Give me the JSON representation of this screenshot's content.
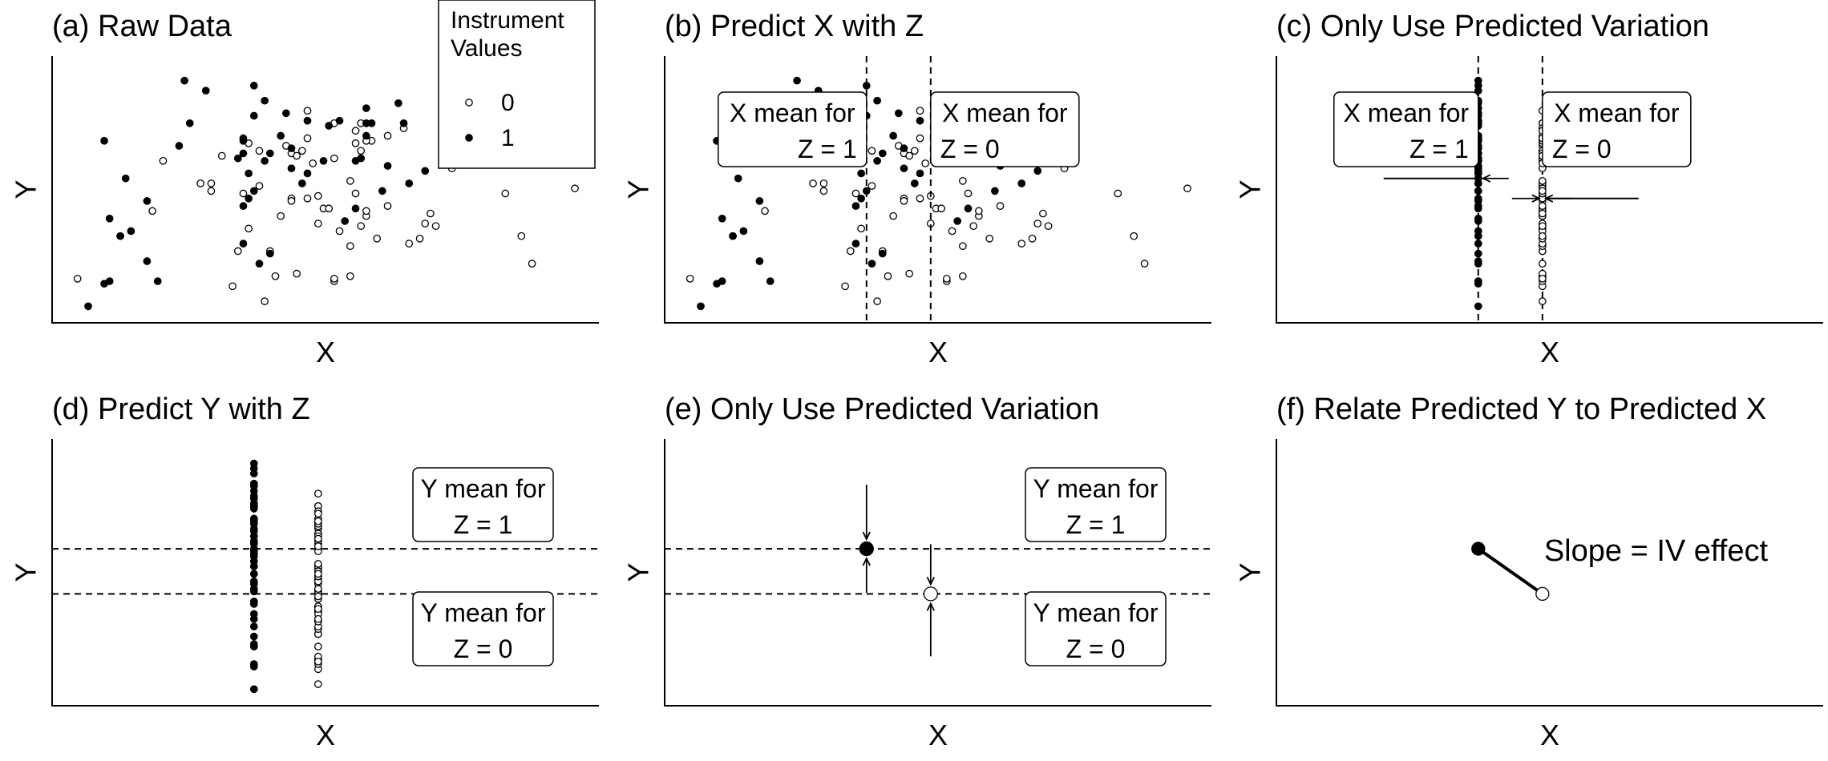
{
  "chart_data": [
    {
      "panel": "a",
      "type": "scatter",
      "title": "(a) Raw Data",
      "xlabel": "X",
      "ylabel": "Y",
      "xlim": [
        0,
        100
      ],
      "ylim": [
        0,
        100
      ],
      "legend": {
        "title_lines": [
          "Instrument",
          "Values"
        ],
        "placement": "top-right",
        "entries": [
          {
            "label": "0",
            "marker": "open"
          },
          {
            "label": "1",
            "marker": "filled"
          }
        ]
      },
      "series": [
        {
          "name": "0",
          "marker": "open",
          "points": [
            [
              4,
              16
            ],
            [
              20,
              63
            ],
            [
              29,
              54
            ],
            [
              41,
              17
            ],
            [
              44,
              48
            ],
            [
              49,
              49
            ],
            [
              50,
              44
            ],
            [
              34,
              27
            ],
            [
              33,
              13
            ],
            [
              35,
              50
            ],
            [
              38,
              53
            ],
            [
              40,
              27
            ],
            [
              42,
              41
            ],
            [
              36,
              36
            ],
            [
              27,
              54
            ],
            [
              18,
              43
            ],
            [
              12,
              33
            ],
            [
              38,
              67
            ],
            [
              43,
              69
            ],
            [
              46,
              67
            ],
            [
              47,
              83
            ],
            [
              44,
              47
            ],
            [
              52,
              78
            ],
            [
              56,
              70
            ],
            [
              57,
              67
            ],
            [
              55,
              55
            ],
            [
              47,
              48
            ],
            [
              51,
              44
            ],
            [
              49,
              38
            ],
            [
              56,
              50
            ],
            [
              58,
              41
            ],
            [
              60,
              32
            ],
            [
              58,
              43
            ],
            [
              57,
              37
            ],
            [
              53,
              35
            ],
            [
              55,
              29
            ],
            [
              55,
              17
            ],
            [
              52,
              15
            ],
            [
              45,
              18
            ],
            [
              52,
              16
            ],
            [
              66,
              30
            ],
            [
              69,
              38
            ],
            [
              62,
              45
            ],
            [
              70,
              42
            ],
            [
              71,
              37
            ],
            [
              57,
              78
            ],
            [
              62,
              73
            ],
            [
              65,
              76
            ],
            [
              59,
              71
            ],
            [
              68,
              32
            ],
            [
              74,
              60
            ],
            [
              84,
              50
            ],
            [
              87,
              33
            ],
            [
              89,
              22
            ],
            [
              97,
              52
            ],
            [
              52,
              64
            ],
            [
              48,
              62
            ],
            [
              44,
              66
            ],
            [
              36,
              70
            ],
            [
              31,
              65
            ],
            [
              56,
              75
            ],
            [
              58,
              71
            ],
            [
              47,
              72
            ],
            [
              39,
              7
            ],
            [
              45,
              65
            ],
            [
              29,
              51
            ]
          ]
        },
        {
          "name": "1",
          "marker": "filled",
          "points": [
            [
              6,
              5
            ],
            [
              9,
              14
            ],
            [
              9,
              71
            ],
            [
              10,
              40
            ],
            [
              12,
              33
            ],
            [
              13,
              56
            ],
            [
              14,
              35
            ],
            [
              17,
              23
            ],
            [
              17,
              47
            ],
            [
              19,
              15
            ],
            [
              23,
              69
            ],
            [
              24,
              95
            ],
            [
              25,
              78
            ],
            [
              28,
              91
            ],
            [
              34,
              64
            ],
            [
              35,
              71
            ],
            [
              35,
              72
            ],
            [
              35,
              66
            ],
            [
              35,
              45
            ],
            [
              35,
              30
            ],
            [
              36,
              48
            ],
            [
              37,
              51
            ],
            [
              36,
              58
            ],
            [
              37,
              81
            ],
            [
              37,
              93
            ],
            [
              38,
              22
            ],
            [
              39,
              87
            ],
            [
              39,
              63
            ],
            [
              40,
              66
            ],
            [
              40,
              26
            ],
            [
              42,
              73
            ],
            [
              43,
              82
            ],
            [
              44,
              60
            ],
            [
              44,
              68
            ],
            [
              46,
              54
            ],
            [
              47,
              58
            ],
            [
              47,
              79
            ],
            [
              50,
              63
            ],
            [
              51,
              77
            ],
            [
              53,
              79
            ],
            [
              54,
              39
            ],
            [
              56,
              63
            ],
            [
              56,
              44
            ],
            [
              57,
              64
            ],
            [
              58,
              78
            ],
            [
              58,
              84
            ],
            [
              58,
              73
            ],
            [
              59,
              78
            ],
            [
              61,
              51
            ],
            [
              62,
              61
            ],
            [
              64,
              86
            ],
            [
              65,
              78
            ],
            [
              66,
              54
            ],
            [
              69,
              59
            ],
            [
              10,
              15
            ]
          ]
        }
      ]
    },
    {
      "panel": "b",
      "type": "scatter",
      "title": "(b) Predict X with Z",
      "xlabel": "X",
      "ylabel": "Y",
      "xlim": [
        0,
        100
      ],
      "ylim": [
        0,
        100
      ],
      "reference_lines": [
        {
          "axis": "x",
          "value": 37,
          "group": "Z = 1"
        },
        {
          "axis": "x",
          "value": 49,
          "group": "Z = 0"
        }
      ],
      "annotations": [
        {
          "lines": [
            "X mean for",
            "Z = 1"
          ],
          "align": "right"
        },
        {
          "lines": [
            "X mean for",
            "Z = 0"
          ],
          "align": "left"
        }
      ]
    },
    {
      "panel": "c",
      "type": "scatter",
      "title": "(c) Only Use Predicted Variation",
      "xlabel": "X",
      "ylabel": "Y",
      "xlim": [
        0,
        100
      ],
      "ylim": [
        0,
        100
      ],
      "x_collapsed": {
        "Z = 1": 37,
        "Z = 0": 49
      },
      "annotations": [
        {
          "lines": [
            "X mean for",
            "Z = 1"
          ],
          "align": "right"
        },
        {
          "lines": [
            "X mean for",
            "Z = 0"
          ],
          "align": "left"
        }
      ]
    },
    {
      "panel": "d",
      "type": "scatter",
      "title": "(d) Predict Y with Z",
      "xlabel": "X",
      "ylabel": "Y",
      "xlim": [
        0,
        100
      ],
      "ylim": [
        0,
        100
      ],
      "reference_lines": [
        {
          "axis": "y",
          "value": 61,
          "group": "Z = 1"
        },
        {
          "axis": "y",
          "value": 43,
          "group": "Z = 0"
        }
      ],
      "annotations": [
        {
          "lines": [
            "Y mean for",
            "Z = 1"
          ],
          "align": "center"
        },
        {
          "lines": [
            "Y mean for",
            "Z = 0"
          ],
          "align": "center"
        }
      ]
    },
    {
      "panel": "e",
      "type": "scatter",
      "title": "(e) Only Use Predicted Variation",
      "xlabel": "X",
      "ylabel": "Y",
      "xlim": [
        0,
        100
      ],
      "ylim": [
        0,
        100
      ],
      "points": [
        {
          "group": "Z = 1",
          "marker": "filled",
          "x": 37,
          "y": 61
        },
        {
          "group": "Z = 0",
          "marker": "open",
          "x": 49,
          "y": 43
        }
      ],
      "annotations": [
        {
          "lines": [
            "Y mean for",
            "Z = 1"
          ],
          "align": "center"
        },
        {
          "lines": [
            "Y mean for",
            "Z = 0"
          ],
          "align": "center"
        }
      ]
    },
    {
      "panel": "f",
      "type": "line",
      "title": "(f) Relate Predicted Y to Predicted X",
      "xlabel": "X",
      "ylabel": "Y",
      "xlim": [
        0,
        100
      ],
      "ylim": [
        0,
        100
      ],
      "points": [
        {
          "group": "Z = 1",
          "marker": "filled",
          "x": 37,
          "y": 61
        },
        {
          "group": "Z = 0",
          "marker": "open",
          "x": 49,
          "y": 43
        }
      ],
      "annotations": [
        {
          "lines": [
            "Slope = IV effect"
          ],
          "align": "left"
        }
      ]
    }
  ]
}
